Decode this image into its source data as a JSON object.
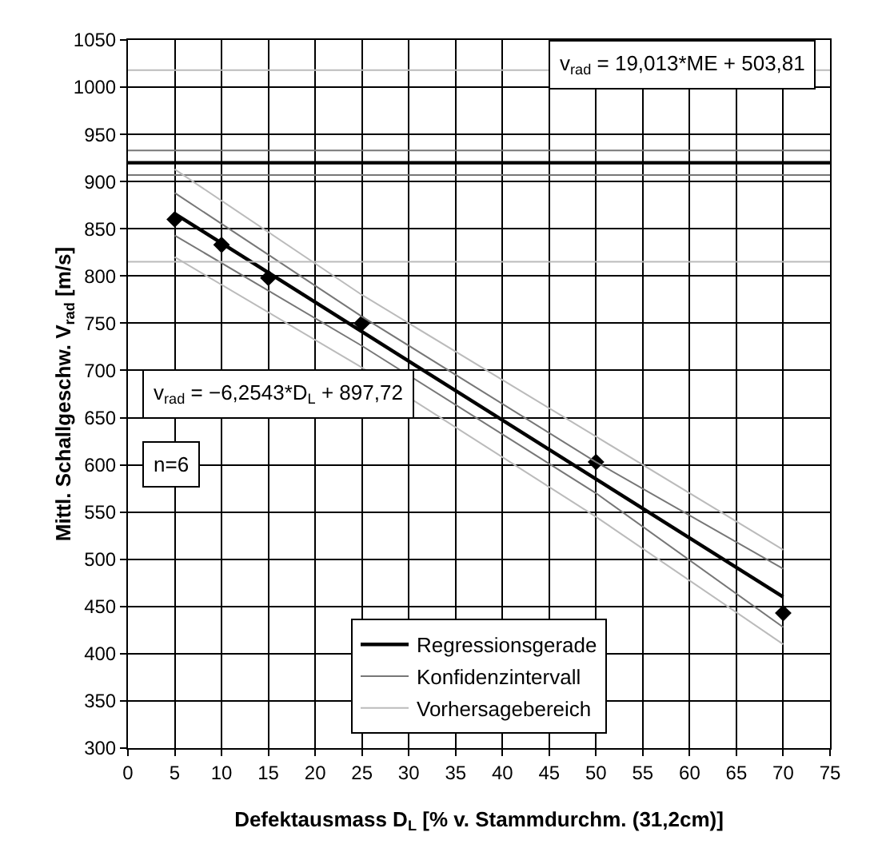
{
  "chart_data": {
    "type": "line",
    "xlabel": "Defektausmass D$_{L}$ [% v. Stammdurchm. (31,2cm)]",
    "ylabel": "Mittl. Schallgeschw. V$_{rad}$ [m/s]",
    "xlim": [
      0,
      75
    ],
    "xticks": [
      0,
      5,
      10,
      15,
      20,
      25,
      30,
      35,
      40,
      45,
      50,
      55,
      60,
      65,
      70,
      75
    ],
    "ylim": [
      300,
      1050
    ],
    "yticks": [
      300,
      350,
      400,
      450,
      500,
      550,
      600,
      650,
      700,
      750,
      800,
      850,
      900,
      950,
      1000,
      1050
    ],
    "grid": true,
    "legend": "bottom",
    "annotations": [
      "v$_{rad}$ = 19,013*ME + 503,81",
      "v$_{rad}$ = −6,2543*D$_{L}$ + 897,72",
      "n=6"
    ],
    "series": [
      {
        "type": "scatter",
        "color": "#000000",
        "marker": "diamond",
        "x": [
          5,
          10,
          15,
          25,
          50,
          70
        ],
        "values": [
          860,
          833,
          798,
          750,
          603,
          443
        ]
      },
      {
        "name": "Regressionsgerade",
        "color": "#000000",
        "line_style": "solid",
        "marker": "none",
        "x": [
          5,
          70
        ],
        "values": [
          866,
          460
        ]
      },
      {
        "color": "#000000",
        "line_style": "solid",
        "marker": "none",
        "x": [
          0,
          75
        ],
        "values": [
          920,
          920
        ]
      },
      {
        "name": "Konfidenzintervall",
        "color": "#777777",
        "line_style": "solid",
        "marker": "none",
        "x": [
          5,
          25,
          50,
          70
        ],
        "values": [
          888,
          757,
          603,
          490
        ]
      },
      {
        "color": "#777777",
        "line_style": "solid",
        "marker": "none",
        "x": [
          5,
          25,
          50,
          70
        ],
        "values": [
          843,
          726,
          570,
          428
        ]
      },
      {
        "color": "#777777",
        "line_style": "solid",
        "marker": "none",
        "x": [
          0,
          75
        ],
        "values": [
          933,
          933
        ]
      },
      {
        "color": "#777777",
        "line_style": "solid",
        "marker": "none",
        "x": [
          0,
          75
        ],
        "values": [
          907,
          907
        ]
      },
      {
        "name": "Vorhersagebereich",
        "color": "#bbbbbb",
        "line_style": "solid",
        "marker": "none",
        "x": [
          5,
          25,
          50,
          70
        ],
        "values": [
          913,
          780,
          630,
          510
        ]
      },
      {
        "color": "#bbbbbb",
        "line_style": "solid",
        "marker": "none",
        "x": [
          5,
          25,
          50,
          70
        ],
        "values": [
          820,
          703,
          545,
          410
        ]
      },
      {
        "color": "#bbbbbb",
        "line_style": "solid",
        "marker": "none",
        "x": [
          0,
          75
        ],
        "values": [
          1018,
          1018
        ]
      },
      {
        "color": "#bbbbbb",
        "line_style": "solid",
        "marker": "none",
        "x": [
          0,
          75
        ],
        "values": [
          815,
          815
        ]
      }
    ]
  }
}
